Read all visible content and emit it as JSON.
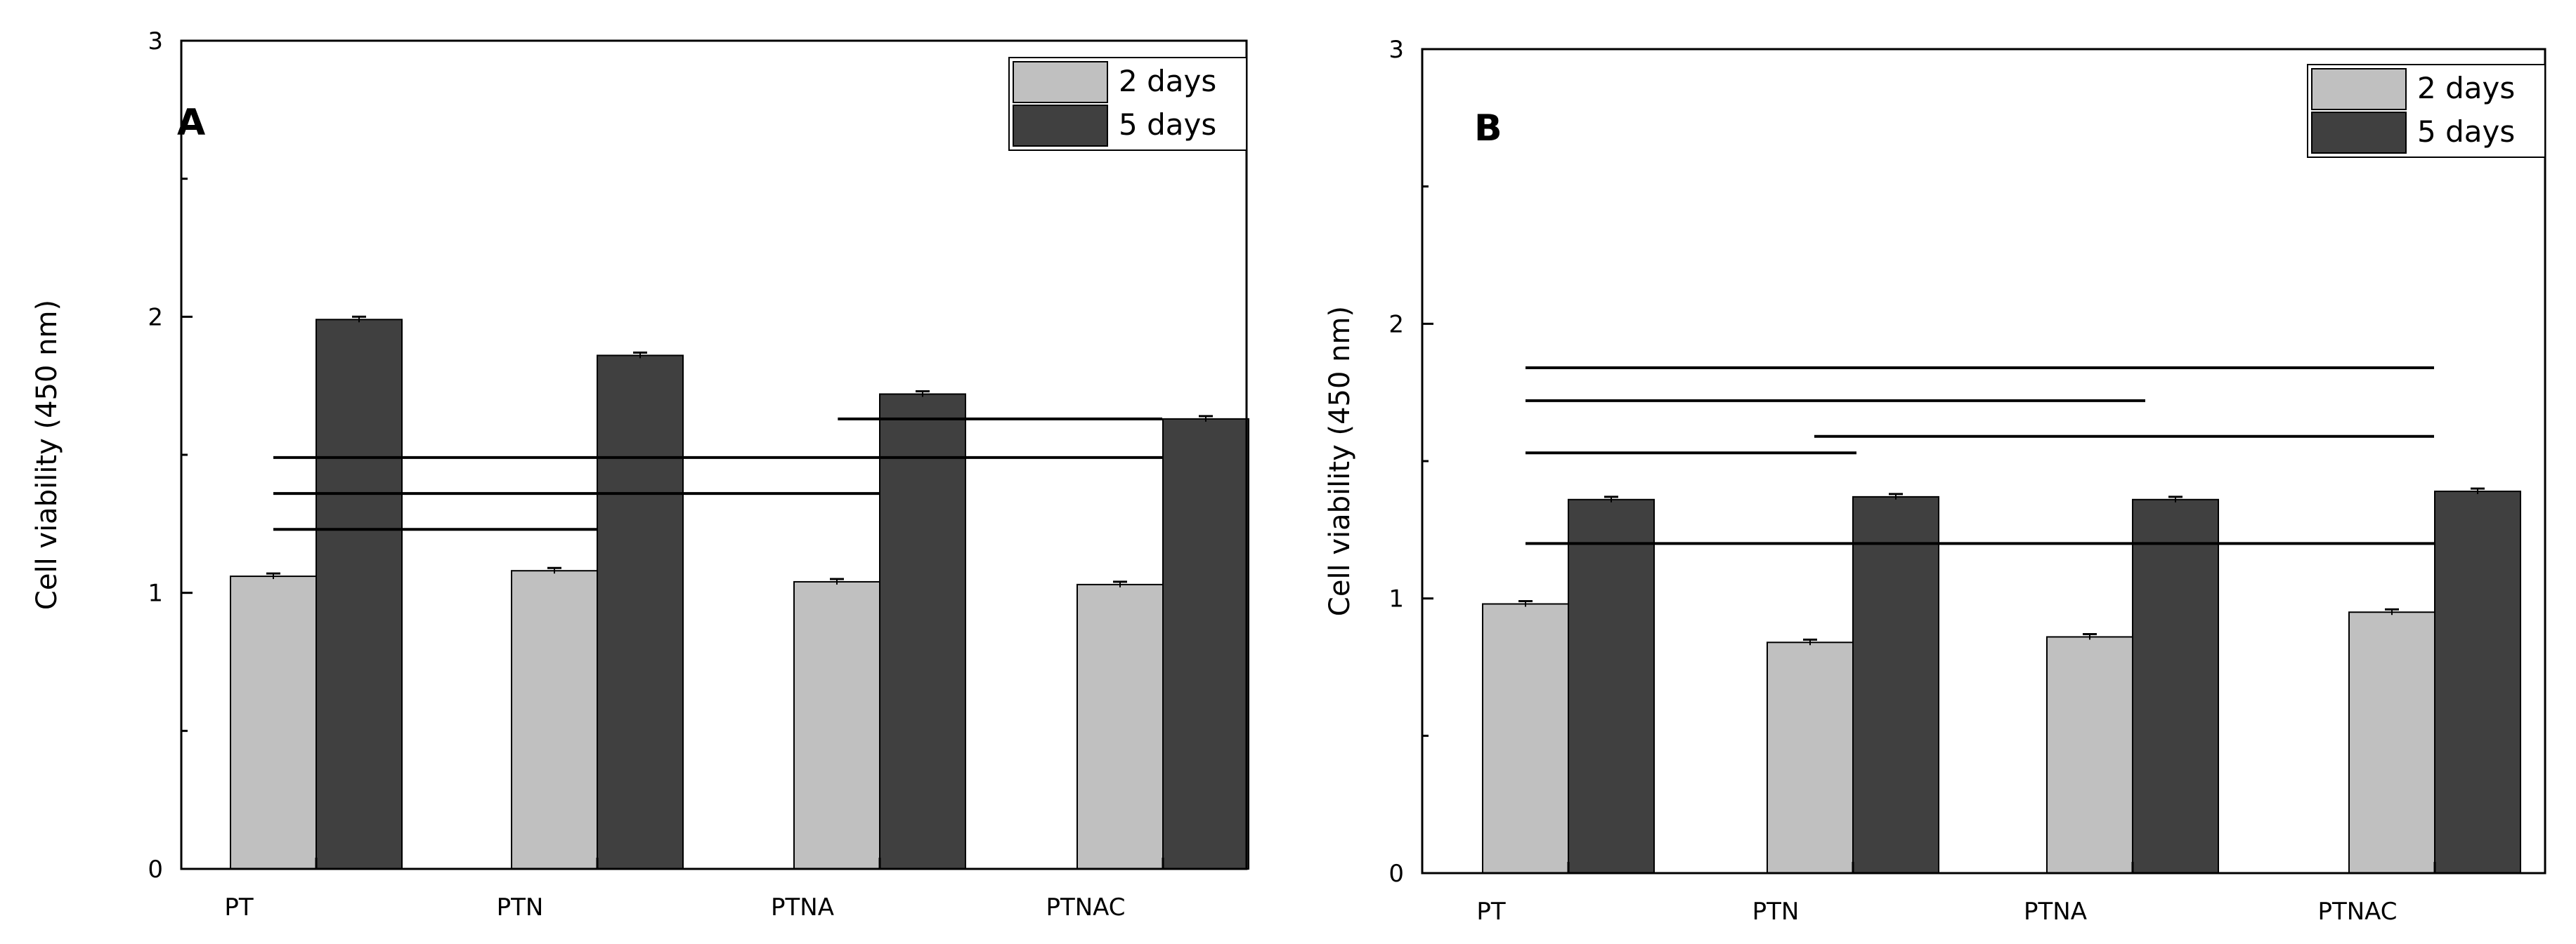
{
  "colors": {
    "light_bar": "#c0c0c0",
    "dark_bar": "#404040",
    "axis": "#000000",
    "background": "#ffffff"
  },
  "chart_data": [
    {
      "type": "bar",
      "panel_label": "A",
      "categories": [
        "PT",
        "PTN",
        "PTNA",
        "PTNAC"
      ],
      "series": [
        {
          "name": "2 days",
          "values": [
            1.06,
            1.08,
            1.04,
            1.03
          ],
          "errors": [
            0.005,
            0.005,
            0.005,
            0.005
          ]
        },
        {
          "name": "5 days",
          "values": [
            1.99,
            1.86,
            1.72,
            1.63
          ],
          "errors": [
            0.005,
            0.005,
            0.005,
            0.005
          ]
        }
      ],
      "ylabel": "Cell viability (450 nm)",
      "xlabel": "",
      "ylim": [
        0,
        3
      ],
      "yticks": [
        0,
        1,
        2,
        3
      ],
      "minor_yticks": [
        0.5,
        1.5,
        2.5
      ],
      "legend_position": "top-right",
      "significance_lines": [
        {
          "from": 0.0,
          "to": 1.0,
          "y": 1.23
        },
        {
          "from": 0.0,
          "to": 2.0,
          "y": 1.36
        },
        {
          "from": 0.0,
          "to": 3.0,
          "y": 1.49
        },
        {
          "from": 2.0,
          "to": 3.0,
          "y": 1.63
        }
      ]
    },
    {
      "type": "bar",
      "panel_label": "B",
      "categories": [
        "PT",
        "PTN",
        "PTNA",
        "PTNAC"
      ],
      "series": [
        {
          "name": "2 days",
          "values": [
            0.98,
            0.84,
            0.86,
            0.95
          ],
          "errors": [
            0.005,
            0.005,
            0.005,
            0.005
          ]
        },
        {
          "name": "5 days",
          "values": [
            1.36,
            1.37,
            1.36,
            1.39
          ],
          "errors": [
            0.005,
            0.005,
            0.005,
            0.005
          ]
        }
      ],
      "ylabel": "Cell viability (450 nm)",
      "xlabel": "",
      "ylim": [
        0,
        3
      ],
      "yticks": [
        0,
        1,
        2,
        3
      ],
      "minor_yticks": [
        0.5,
        1.5,
        2.5
      ],
      "legend_position": "top-right",
      "significance_lines": [
        {
          "from": 0.0,
          "to": 3.0,
          "y": 1.2
        },
        {
          "from": 0.0,
          "to": 1.0,
          "y": 1.53
        },
        {
          "from": 1.0,
          "to": 3.0,
          "y": 1.59
        },
        {
          "from": 0.0,
          "to": 2.0,
          "y": 1.72
        },
        {
          "from": 0.0,
          "to": 3.0,
          "y": 1.84
        }
      ]
    }
  ]
}
